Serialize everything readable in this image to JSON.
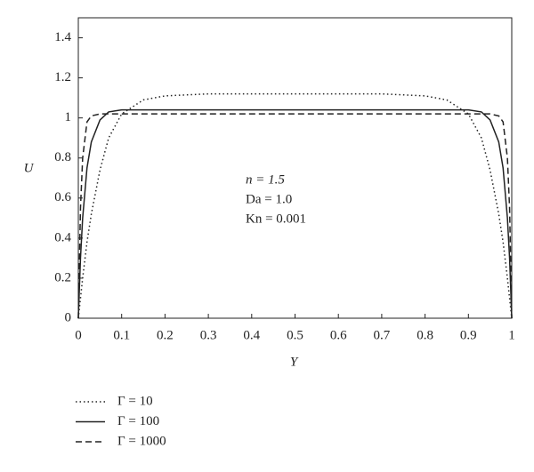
{
  "chart_data": {
    "type": "line",
    "xlabel": "Y",
    "ylabel": "U",
    "annotations": [
      "n = 1.5",
      "Da = 1.0",
      "Kn = 0.001"
    ],
    "x": [
      0,
      0.005,
      0.01,
      0.02,
      0.03,
      0.05,
      0.07,
      0.1,
      0.15,
      0.2,
      0.3,
      0.5,
      0.7,
      0.8,
      0.85,
      0.9,
      0.93,
      0.95,
      0.97,
      0.98,
      0.99,
      0.995,
      1
    ],
    "series": [
      {
        "name": "Γ = 10",
        "color": "#222222",
        "dash": "dotted",
        "values": [
          0,
          0.1,
          0.2,
          0.38,
          0.52,
          0.74,
          0.9,
          1.02,
          1.09,
          1.11,
          1.12,
          1.12,
          1.12,
          1.11,
          1.09,
          1.02,
          0.9,
          0.74,
          0.52,
          0.38,
          0.2,
          0.1,
          0
        ]
      },
      {
        "name": "Γ = 100",
        "color": "#222222",
        "dash": "solid",
        "values": [
          0,
          0.3,
          0.5,
          0.75,
          0.88,
          0.99,
          1.03,
          1.04,
          1.04,
          1.04,
          1.04,
          1.04,
          1.04,
          1.04,
          1.04,
          1.04,
          1.03,
          0.99,
          0.88,
          0.75,
          0.5,
          0.3,
          0
        ]
      },
      {
        "name": "Γ = 1000",
        "color": "#222222",
        "dash": "dashed",
        "values": [
          0,
          0.55,
          0.8,
          0.98,
          1.01,
          1.02,
          1.02,
          1.02,
          1.02,
          1.02,
          1.02,
          1.02,
          1.02,
          1.02,
          1.02,
          1.02,
          1.02,
          1.02,
          1.01,
          0.98,
          0.8,
          0.55,
          0
        ]
      }
    ],
    "xlim": [
      0,
      1
    ],
    "xticks": [
      0,
      0.1,
      0.2,
      0.3,
      0.4,
      0.5,
      0.6,
      0.7,
      0.8,
      0.9,
      1
    ],
    "ylim": [
      0,
      1.5
    ],
    "yticks": [
      0,
      0.2,
      0.4,
      0.6,
      0.8,
      1,
      1.2,
      1.4
    ],
    "grid": false,
    "legend": "bottom-left"
  }
}
